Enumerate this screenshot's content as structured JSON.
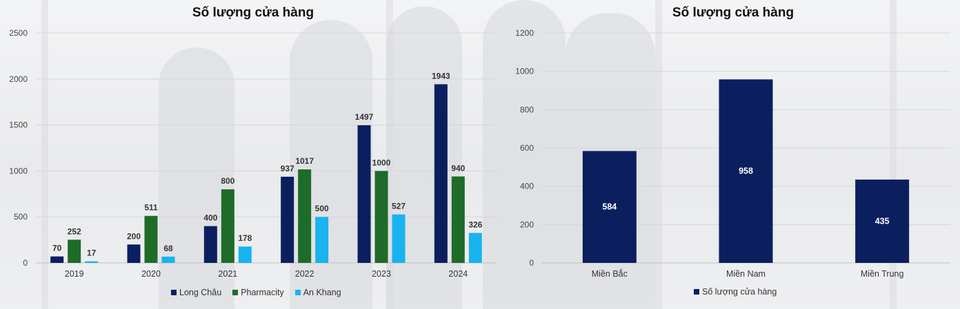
{
  "chart_data": [
    {
      "type": "bar",
      "title": "Số lượng cửa hàng",
      "categories": [
        "2019",
        "2020",
        "2021",
        "2022",
        "2023",
        "2024"
      ],
      "series": [
        {
          "name": "Long Châu",
          "color": "#0b1f5e",
          "values": [
            70,
            200,
            400,
            937,
            1497,
            1943
          ]
        },
        {
          "name": "Pharmacity",
          "color": "#1f6b2a",
          "values": [
            252,
            511,
            800,
            1017,
            1000,
            940
          ]
        },
        {
          "name": "An Khang",
          "color": "#19b3ef",
          "values": [
            17,
            68,
            178,
            500,
            527,
            326
          ]
        }
      ],
      "ylim": [
        0,
        2500
      ],
      "yticks": [
        0,
        500,
        1000,
        1500,
        2000,
        2500
      ],
      "grid": true,
      "legend": "bottom"
    },
    {
      "type": "bar",
      "title": "Số lượng cửa hàng",
      "categories": [
        "Miền Bắc",
        "Miền Nam",
        "Miền Trung"
      ],
      "series": [
        {
          "name": "Số lượng cửa hàng",
          "color": "#0b1f5e",
          "values": [
            584,
            958,
            435
          ]
        }
      ],
      "ylim": [
        0,
        1200
      ],
      "yticks": [
        0,
        200,
        400,
        600,
        800,
        1000,
        1200
      ],
      "grid": true,
      "legend": "bottom"
    }
  ]
}
